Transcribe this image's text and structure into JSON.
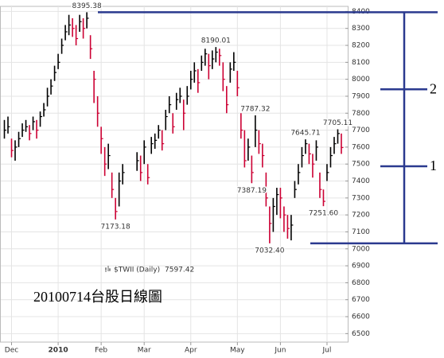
{
  "chart_data": {
    "type": "ohlc",
    "title": "20100714台股日線圖",
    "series": [
      {
        "name": "$TWII (Daily)",
        "up_color": "#000000",
        "down_color": "#cc0033",
        "high": [
          7760,
          7780,
          7650,
          7640,
          7690,
          7740,
          7760,
          7730,
          7780,
          7760,
          7810,
          7860,
          7950,
          8000,
          8080,
          8150,
          8240,
          8320,
          8380,
          8360,
          8320,
          8380,
          8360,
          8395.38,
          8260,
          8050,
          7900,
          7720,
          7600,
          7620,
          7450,
          7300,
          7450,
          7500,
          null,
          null,
          null,
          7570,
          7550,
          7640,
          7500,
          7660,
          7680,
          7730,
          7700,
          7820,
          7900,
          7800,
          7920,
          7950,
          7880,
          7960,
          8050,
          8100,
          8060,
          8140,
          8180,
          8150,
          8170,
          8190.01,
          8180,
          8100,
          7960,
          8100,
          8160,
          8050,
          7800,
          7700,
          7650,
          7550,
          7787.32,
          7700,
          7620,
          7450,
          7250,
          7300,
          7360,
          7360,
          7250,
          7200,
          7200,
          7400,
          7500,
          7600,
          7645.71,
          7620,
          7560,
          7640,
          7450,
          7350,
          7500,
          7600,
          7660,
          7705.11,
          7680
        ],
        "low": [
          7650,
          7680,
          7540,
          7520,
          7600,
          7660,
          7690,
          7640,
          7700,
          7650,
          7720,
          7780,
          7840,
          7910,
          7990,
          8060,
          8150,
          8230,
          8260,
          8250,
          8200,
          8280,
          8240,
          8300,
          8120,
          7860,
          7720,
          7560,
          7430,
          7470,
          7300,
          7173.18,
          7250,
          7380,
          null,
          null,
          null,
          7460,
          7400,
          7500,
          7380,
          7560,
          7590,
          7650,
          7580,
          7700,
          7800,
          7680,
          7820,
          7860,
          7700,
          7850,
          7940,
          7980,
          7920,
          8050,
          8080,
          8000,
          8060,
          8100,
          8080,
          7930,
          7800,
          7980,
          8050,
          7900,
          7650,
          7480,
          7520,
          7387.19,
          7600,
          7560,
          7480,
          7250,
          7032.4,
          7100,
          7200,
          7180,
          7100,
          7060,
          7050,
          7300,
          7380,
          7480,
          7560,
          7500,
          7420,
          7520,
          7300,
          7251.6,
          7400,
          7480,
          7560,
          7620,
          7560
        ],
        "close": [
          7700,
          7720,
          7580,
          7600,
          7650,
          7700,
          7720,
          7680,
          7750,
          7700,
          7780,
          7820,
          7900,
          7960,
          8040,
          8100,
          8200,
          8280,
          8320,
          8300,
          8240,
          8340,
          8300,
          8360,
          8180,
          8000,
          7800,
          7650,
          7500,
          7550,
          7350,
          7220,
          7400,
          7450,
          null,
          null,
          null,
          7520,
          7450,
          7600,
          7420,
          7620,
          7640,
          7700,
          7620,
          7780,
          7850,
          7720,
          7880,
          7900,
          7800,
          7900,
          8000,
          8050,
          7980,
          8100,
          8150,
          8080,
          8120,
          8160,
          8140,
          8000,
          7850,
          8060,
          8100,
          7950,
          7700,
          7520,
          7600,
          7450,
          7700,
          7620,
          7550,
          7300,
          7150,
          7250,
          7320,
          7300,
          7200,
          7120,
          7140,
          7350,
          7450,
          7550,
          7620,
          7560,
          7500,
          7600,
          7350,
          7280,
          7450,
          7550,
          7620,
          7680,
          7597.42
        ]
      }
    ],
    "high_labels": {
      "23": "8395.38",
      "59": "8190.01",
      "70": "7787.32",
      "84": "7645.71",
      "93": "7705.11"
    },
    "low_labels": {
      "31": "7173.18",
      "69": "7387.19",
      "74": "7032.40",
      "89": "7251.60"
    },
    "xlim": [
      -1,
      96
    ],
    "xticks": [
      {
        "value": 2,
        "label": "Dec"
      },
      {
        "value": 15,
        "label": "2010"
      },
      {
        "value": 27,
        "label": "Feb"
      },
      {
        "value": 39,
        "label": "Mar"
      },
      {
        "value": 52,
        "label": "Apr"
      },
      {
        "value": 65,
        "label": "May"
      },
      {
        "value": 77,
        "label": "Jun"
      },
      {
        "value": 90,
        "label": "Jul"
      }
    ],
    "ylim": [
      6450,
      8430
    ],
    "yticks": [
      6500,
      6600,
      6700,
      6800,
      6900,
      7000,
      7100,
      7200,
      7300,
      7400,
      7500,
      7600,
      7700,
      7800,
      7900,
      8000,
      8100,
      8200,
      8300,
      8400
    ],
    "grid": true,
    "levels": [
      8395.38,
      7032.4
    ],
    "divisions": [
      {
        "value": 7487,
        "label": "1"
      },
      {
        "value": 7941,
        "label": "2"
      }
    ],
    "level_color": "#2b3a8f"
  }
}
